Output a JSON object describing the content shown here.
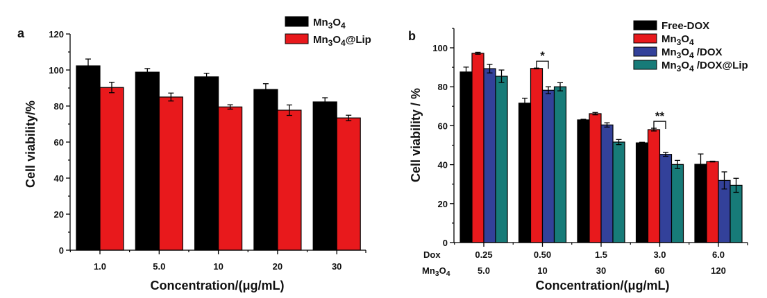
{
  "chart_data": [
    {
      "panel": "a",
      "type": "bar",
      "title": "",
      "xlabel": "Concentration/(μg/mL)",
      "ylabel": "Cell viability/%",
      "ylim": [
        0,
        120
      ],
      "yticks": [
        0,
        20,
        40,
        60,
        80,
        100,
        120
      ],
      "categories": [
        "1.0",
        "5.0",
        "10",
        "20",
        "30"
      ],
      "legend_position": "top-right",
      "series": [
        {
          "name": "Mn3O4",
          "name_parts": [
            "Mn",
            "3",
            "O",
            "4",
            ""
          ],
          "color": "#000000",
          "values": [
            102.3,
            98.8,
            96.2,
            89.2,
            82.3
          ],
          "errors": [
            3.8,
            2.0,
            2.0,
            3.2,
            2.3
          ]
        },
        {
          "name": "Mn3O4@Lip",
          "name_parts": [
            "Mn",
            "3",
            "O",
            "4",
            "@Lip"
          ],
          "color": "#e8191c",
          "values": [
            90.3,
            85.0,
            79.5,
            77.7,
            73.4
          ],
          "errors": [
            2.9,
            2.2,
            1.2,
            2.9,
            1.5
          ]
        }
      ]
    },
    {
      "panel": "b",
      "type": "bar",
      "title": "",
      "xlabel": "Concentration/(μg/mL)",
      "ylabel": "Cell viability / %",
      "ylim": [
        0,
        110
      ],
      "yticks": [
        0,
        20,
        40,
        60,
        80,
        100
      ],
      "categories": [
        "0.25",
        "0.50",
        "1.5",
        "3.0",
        "6.0"
      ],
      "secondary_categories": [
        "5.0",
        "10",
        "30",
        "60",
        "120"
      ],
      "row_labels": [
        "Dox",
        "Mn3O4"
      ],
      "legend_position": "top-right",
      "series": [
        {
          "name": "Free-DOX",
          "name_parts": [
            "Free-DOX",
            "",
            "",
            "",
            ""
          ],
          "color": "#000000",
          "values": [
            87.6,
            71.6,
            63.0,
            51.2,
            40.2
          ],
          "errors": [
            2.5,
            2.5,
            0.3,
            0.3,
            5.3
          ]
        },
        {
          "name": "Mn3O4",
          "name_parts": [
            "Mn",
            "3",
            "O",
            "4",
            ""
          ],
          "color": "#e8191c",
          "values": [
            97.2,
            89.4,
            66.2,
            58.0,
            41.6
          ],
          "errors": [
            0.5,
            0.2,
            0.6,
            0.7,
            0.2
          ]
        },
        {
          "name": "Mn3O4 /DOX",
          "name_parts": [
            "Mn",
            "3",
            "O",
            "4",
            " /DOX"
          ],
          "color": "#33419a",
          "values": [
            89.3,
            78.2,
            60.4,
            45.3,
            31.9
          ],
          "errors": [
            2.2,
            1.8,
            1.1,
            1.0,
            4.4
          ]
        },
        {
          "name": "Mn3O4 /DOX@Lip",
          "name_parts": [
            "Mn",
            "3",
            "O",
            "4",
            " /DOX@Lip"
          ],
          "color": "#177b78",
          "values": [
            85.4,
            80.0,
            51.6,
            40.1,
            29.4
          ],
          "errors": [
            3.2,
            2.1,
            1.3,
            2.1,
            3.6
          ]
        }
      ],
      "annotations": [
        {
          "text": "*",
          "group": 1,
          "between_series": [
            1,
            2
          ]
        },
        {
          "text": "**",
          "group": 3,
          "between_series": [
            1,
            2
          ]
        }
      ]
    }
  ]
}
